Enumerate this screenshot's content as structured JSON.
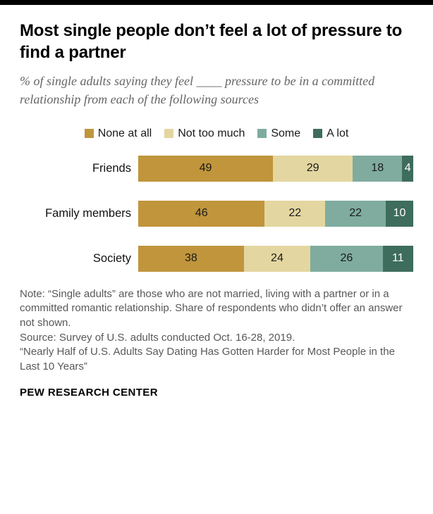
{
  "page": {
    "title": "Most single people don’t feel a lot of pressure to find a partner",
    "subtitle": "% of single adults saying they feel ____ pressure to be in a committed relationship from each of the following sources",
    "footer": "PEW RESEARCH CENTER"
  },
  "notes": {
    "note": "Note: “Single adults” are those who are not married, living with a partner or in a committed romantic relationship. Share of respondents who didn’t offer an answer not shown.",
    "source": "Source: Survey of U.S. adults conducted Oct. 16-28, 2019.",
    "report": "“Nearly Half of U.S. Adults Say Dating Has Gotten Harder for Most People in the Last 10 Years”"
  },
  "chart_data": {
    "type": "bar",
    "stacked": true,
    "orientation": "horizontal",
    "title": "Most single people don’t feel a lot of pressure to find a partner",
    "categories": [
      "Friends",
      "Family members",
      "Society"
    ],
    "series": [
      {
        "name": "None at all",
        "color": "#C0953C",
        "values": [
          49,
          46,
          38
        ]
      },
      {
        "name": "Not too much",
        "color": "#E3D6A0",
        "values": [
          29,
          22,
          24
        ]
      },
      {
        "name": "Some",
        "color": "#7FAC9F",
        "values": [
          18,
          22,
          26
        ]
      },
      {
        "name": "A lot",
        "color": "#3E6C5D",
        "values": [
          4,
          10,
          11
        ]
      }
    ],
    "xlim": [
      0,
      100
    ],
    "legend_position": "top",
    "grid": false,
    "value_label_dark": "#1a1a1a",
    "value_label_light": "#ffffff"
  }
}
